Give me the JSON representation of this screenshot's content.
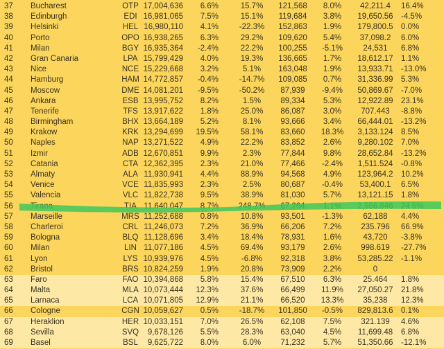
{
  "colors": {
    "row_dark": "#fbd55c",
    "row_light": "#fde8a6",
    "highlight": "#3cc85a",
    "text": "#3a3320"
  },
  "highlighted_rank": "56",
  "rows": [
    {
      "rank": "37",
      "city": "Bucharest",
      "code": "OTP",
      "pax": "17,004,636",
      "p1": "6.6%",
      "p2": "15.7%",
      "mv": "121,568",
      "p3": "8.0%",
      "cg": "42,211.4",
      "p4": "16.4%",
      "shade": "dark"
    },
    {
      "rank": "38",
      "city": "Edinburgh",
      "code": "EDI",
      "pax": "16,981,065",
      "p1": "7.5%",
      "p2": "15.1%",
      "mv": "119,684",
      "p3": "3.8%",
      "cg": "19,650.56",
      "p4": "-4.5%",
      "shade": "dark"
    },
    {
      "rank": "39",
      "city": "Helsinki",
      "code": "HEL",
      "pax": "16,980,110",
      "p1": "4.1%",
      "p2": "-22.3%",
      "mv": "152,863",
      "p3": "1.9%",
      "cg": "179,800.5",
      "p4": "0.0%",
      "shade": "dark"
    },
    {
      "rank": "40",
      "city": "Porto",
      "code": "OPO",
      "pax": "16,938,265",
      "p1": "6.3%",
      "p2": "29.2%",
      "mv": "109,620",
      "p3": "5.4%",
      "cg": "37,098.2",
      "p4": "6.0%",
      "shade": "dark"
    },
    {
      "rank": "41",
      "city": "Milan",
      "code": "BGY",
      "pax": "16,935,364",
      "p1": "-2.4%",
      "p2": "22.2%",
      "mv": "100,255",
      "p3": "-5.1%",
      "cg": "24,531",
      "p4": "6.8%",
      "shade": "dark"
    },
    {
      "rank": "42",
      "city": "Gran Canaria",
      "code": "LPA",
      "pax": "15,799,429",
      "p1": "4.0%",
      "p2": "19.3%",
      "mv": "136,665",
      "p3": "1.7%",
      "cg": "18,612.17",
      "p4": "1.1%",
      "shade": "dark"
    },
    {
      "rank": "43",
      "city": "Nice",
      "code": "NCE",
      "pax": "15,229,668",
      "p1": "3.2%",
      "p2": "5.1%",
      "mv": "163,048",
      "p3": "1.9%",
      "cg": "13,933.71",
      "p4": "-13.0%",
      "shade": "dark"
    },
    {
      "rank": "44",
      "city": "Hamburg",
      "code": "HAM",
      "pax": "14,772,857",
      "p1": "-0.4%",
      "p2": "-14.7%",
      "mv": "109,085",
      "p3": "0.7%",
      "cg": "31,336.99",
      "p4": "5.3%",
      "shade": "dark"
    },
    {
      "rank": "45",
      "city": "Moscow",
      "code": "DME",
      "pax": "14,081,201",
      "p1": "-9.5%",
      "p2": "-50.2%",
      "mv": "87,939",
      "p3": "-9.4%",
      "cg": "50,869.67",
      "p4": "-7.0%",
      "shade": "dark"
    },
    {
      "rank": "46",
      "city": "Ankara",
      "code": "ESB",
      "pax": "13,995,752",
      "p1": "8.2%",
      "p2": "1.5%",
      "mv": "89,334",
      "p3": "5.3%",
      "cg": "12,922.89",
      "p4": "23.1%",
      "shade": "dark"
    },
    {
      "rank": "47",
      "city": "Tenerife",
      "code": "TFS",
      "pax": "13,917,622",
      "p1": "1.8%",
      "p2": "25.0%",
      "mv": "86,087",
      "p3": "3.0%",
      "cg": "707.443",
      "p4": "-8.8%",
      "shade": "dark"
    },
    {
      "rank": "48",
      "city": "Birmingham",
      "code": "BHX",
      "pax": "13,664,189",
      "p1": "5.2%",
      "p2": "8.1%",
      "mv": "93,666",
      "p3": "3.4%",
      "cg": "66,444.01",
      "p4": "-13.2%",
      "shade": "dark"
    },
    {
      "rank": "49",
      "city": "Krakow",
      "code": "KRK",
      "pax": "13,294,699",
      "p1": "19.5%",
      "p2": "58.1%",
      "mv": "83,660",
      "p3": "18.3%",
      "cg": "3,133.124",
      "p4": "8.5%",
      "shade": "dark"
    },
    {
      "rank": "50",
      "city": "Naples",
      "code": "NAP",
      "pax": "13,271,522",
      "p1": "4.9%",
      "p2": "22.2%",
      "mv": "83,852",
      "p3": "2.6%",
      "cg": "9,280.102",
      "p4": "7.0%",
      "shade": "dark"
    },
    {
      "rank": "51",
      "city": "Izmir",
      "code": "ADB",
      "pax": "12,670,851",
      "p1": "9.9%",
      "p2": "2.3%",
      "mv": "77,844",
      "p3": "9.8%",
      "cg": "28,652.84",
      "p4": "-13.2%",
      "shade": "dark"
    },
    {
      "rank": "52",
      "city": "Catania",
      "code": "CTA",
      "pax": "12,362,395",
      "p1": "2.3%",
      "p2": "21.0%",
      "mv": "77,466",
      "p3": "-2.4%",
      "cg": "1,511.524",
      "p4": "-0.8%",
      "shade": "dark"
    },
    {
      "rank": "53",
      "city": "Almaty",
      "code": "ALA",
      "pax": "11,930,941",
      "p1": "4.4%",
      "p2": "88.9%",
      "mv": "94,568",
      "p3": "4.9%",
      "cg": "123,964.2",
      "p4": "10.2%",
      "shade": "dark"
    },
    {
      "rank": "54",
      "city": "Venice",
      "code": "VCE",
      "pax": "11,835,993",
      "p1": "2.3%",
      "p2": "2.5%",
      "mv": "80,687",
      "p3": "-0.4%",
      "cg": "53,400.1",
      "p4": "6.5%",
      "shade": "dark"
    },
    {
      "rank": "55",
      "city": "Valencia",
      "code": "VLC",
      "pax": "11,822,738",
      "p1": "9.5%",
      "p2": "38.9%",
      "mv": "81,030",
      "p3": "5.7%",
      "cg": "13,121.15",
      "p4": "1.8%",
      "shade": "dark"
    },
    {
      "rank": "56",
      "city": "Tirana",
      "code": "TIA",
      "pax": "11,640,047",
      "p1": "8.7%",
      "p2": "248.7%",
      "mv": "67,264",
      "p3": "1.1%",
      "cg": "2,556.846",
      "p4": "24.5%",
      "shade": "dark"
    },
    {
      "rank": "57",
      "city": "Marseille",
      "code": "MRS",
      "pax": "11,252,688",
      "p1": "0.8%",
      "p2": "10.8%",
      "mv": "93,501",
      "p3": "-1.3%",
      "cg": "62,188",
      "p4": "4.4%",
      "shade": "dark"
    },
    {
      "rank": "58",
      "city": "Charleroi",
      "code": "CRL",
      "pax": "11,246,073",
      "p1": "7.2%",
      "p2": "36.9%",
      "mv": "66,206",
      "p3": "7.2%",
      "cg": "235.796",
      "p4": "66.9%",
      "shade": "dark"
    },
    {
      "rank": "59",
      "city": "Bologna",
      "code": "BLQ",
      "pax": "11,128,696",
      "p1": "3.4%",
      "p2": "18.4%",
      "mv": "78,931",
      "p3": "1.6%",
      "cg": "43,720",
      "p4": "-3.8%",
      "shade": "dark"
    },
    {
      "rank": "60",
      "city": "Milan",
      "code": "LIN",
      "pax": "11,077,186",
      "p1": "4.5%",
      "p2": "69.4%",
      "mv": "93,179",
      "p3": "2.6%",
      "cg": "998.619",
      "p4": "-27.7%",
      "shade": "dark"
    },
    {
      "rank": "61",
      "city": "Lyon",
      "code": "LYS",
      "pax": "10,939,976",
      "p1": "4.5%",
      "p2": "-6.8%",
      "mv": "92,318",
      "p3": "3.8%",
      "cg": "53,285.22",
      "p4": "-1.1%",
      "shade": "dark"
    },
    {
      "rank": "62",
      "city": "Bristol",
      "code": "BRS",
      "pax": "10,824,259",
      "p1": "1.9%",
      "p2": "20.8%",
      "mv": "73,909",
      "p3": "2.2%",
      "cg": "0",
      "p4": "",
      "shade": "dark"
    },
    {
      "rank": "63",
      "city": "Faro",
      "code": "FAO",
      "pax": "10,394,868",
      "p1": "5.8%",
      "p2": "15.4%",
      "mv": "67,510",
      "p3": "6.3%",
      "cg": "25.464",
      "p4": "1.8%",
      "shade": "light"
    },
    {
      "rank": "64",
      "city": "Malta",
      "code": "MLA",
      "pax": "10,073,444",
      "p1": "12.3%",
      "p2": "37.6%",
      "mv": "66,499",
      "p3": "11.9%",
      "cg": "27,050.27",
      "p4": "21.8%",
      "shade": "light"
    },
    {
      "rank": "65",
      "city": "Larnaca",
      "code": "LCA",
      "pax": "10,071,805",
      "p1": "12.9%",
      "p2": "21.1%",
      "mv": "66,520",
      "p3": "13.3%",
      "cg": "35,238",
      "p4": "12.3%",
      "shade": "light"
    },
    {
      "rank": "66",
      "city": "Cologne",
      "code": "CGN",
      "pax": "10,059,627",
      "p1": "0.5%",
      "p2": "-18.7%",
      "mv": "101,850",
      "p3": "-0.5%",
      "cg": "829,813.6",
      "p4": "0.1%",
      "shade": "dark"
    },
    {
      "rank": "67",
      "city": "Heraklion",
      "code": "HER",
      "pax": "10,033,151",
      "p1": "7.0%",
      "p2": "26.5%",
      "mv": "62,108",
      "p3": "7.5%",
      "cg": "321.139",
      "p4": "4.6%",
      "shade": "light"
    },
    {
      "rank": "68",
      "city": "Sevilla",
      "code": "SVQ",
      "pax": "9,678,126",
      "p1": "5.5%",
      "p2": "28.3%",
      "mv": "63,040",
      "p3": "4.5%",
      "cg": "11,699.48",
      "p4": "6.8%",
      "shade": "light"
    },
    {
      "rank": "69",
      "city": "Basel",
      "code": "BSL",
      "pax": "9,625,722",
      "p1": "8.0%",
      "p2": "6.0%",
      "mv": "71,232",
      "p3": "5.7%",
      "cg": "51,350.66",
      "p4": "-12.1%",
      "shade": "light"
    }
  ]
}
